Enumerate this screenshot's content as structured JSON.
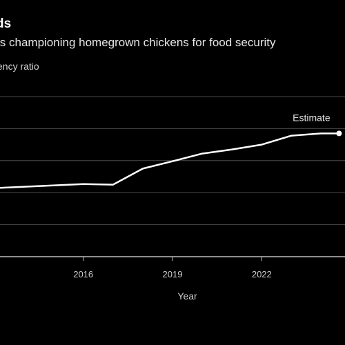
{
  "header": {
    "title": "ds",
    "subtitle": "ls championing homegrown chickens for food security",
    "ylabel": "ency ratio"
  },
  "colors": {
    "background": "#000000",
    "line": "#ffffff",
    "grid": "#4a4a4a",
    "text": "#cfcfcf"
  },
  "chart_data": {
    "type": "line",
    "title": "ds",
    "subtitle": "ls championing homegrown chickens for food security",
    "ylabel": "ency ratio",
    "xlabel": "Year",
    "x_ticks": [
      "2016",
      "2019",
      "2022"
    ],
    "xlim": [
      2013.2,
      2024.8
    ],
    "ylim": [
      0,
      5
    ],
    "grid": true,
    "series": [
      {
        "values": [
          {
            "x": 2013.2,
            "y": 2.15
          },
          {
            "x": 2016.0,
            "y": 2.27
          },
          {
            "x": 2017.0,
            "y": 2.25
          },
          {
            "x": 2018.0,
            "y": 2.75
          },
          {
            "x": 2019.0,
            "y": 2.98
          },
          {
            "x": 2020.0,
            "y": 3.22
          },
          {
            "x": 2021.0,
            "y": 3.35
          },
          {
            "x": 2022.0,
            "y": 3.5
          },
          {
            "x": 2023.0,
            "y": 3.78
          },
          {
            "x": 2024.0,
            "y": 3.85
          },
          {
            "x": 2024.6,
            "y": 3.85
          }
        ]
      }
    ],
    "marker_point": {
      "x": 2024.6,
      "y": 3.85
    },
    "annotation": "Estimate"
  }
}
